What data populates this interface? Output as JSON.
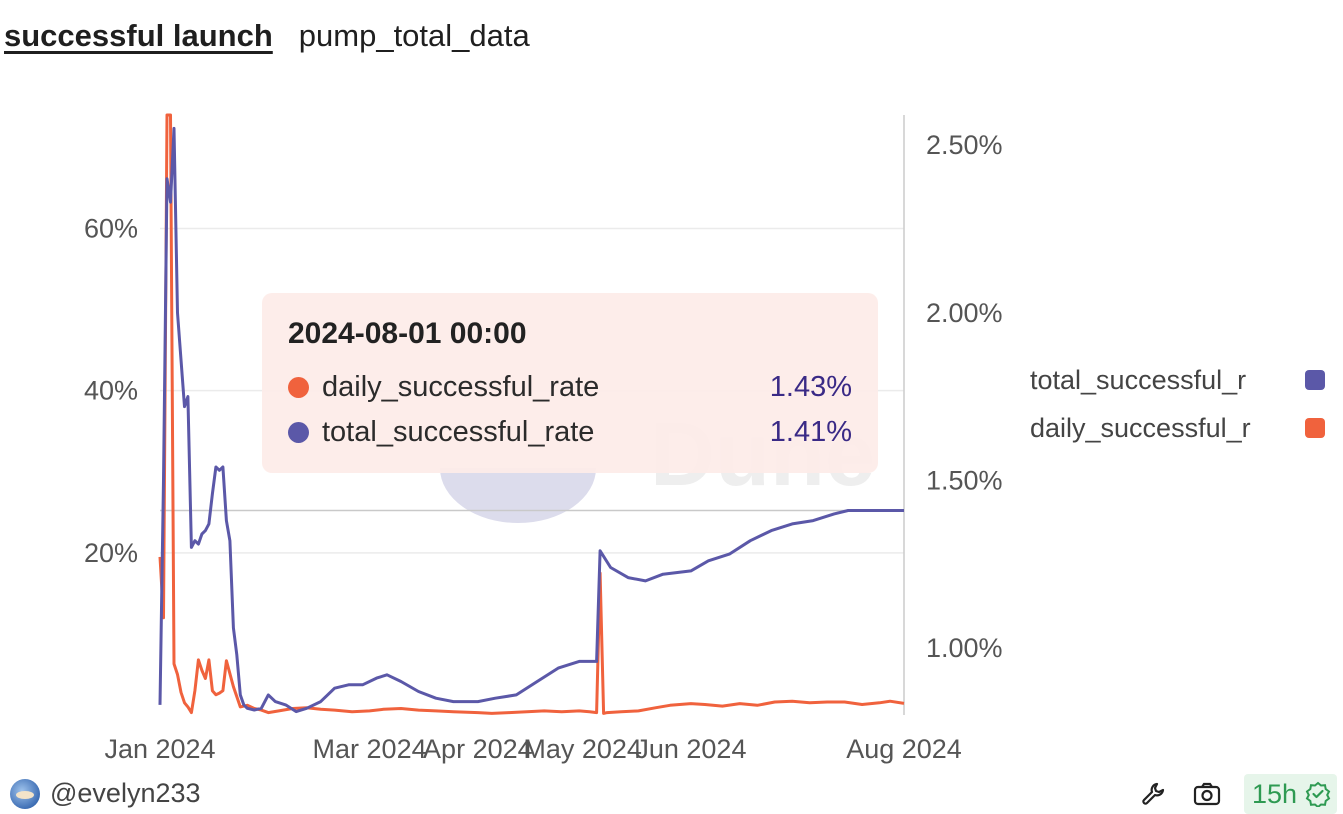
{
  "header": {
    "title": "successful launch",
    "subtitle": "pump_total_data"
  },
  "tooltip": {
    "title": "2024-08-01 00:00",
    "rows": [
      {
        "name": "daily_successful_rate",
        "value": "1.43%",
        "color": "#f0623d"
      },
      {
        "name": "total_successful_rate",
        "value": "1.41%",
        "color": "#5b58a8"
      }
    ]
  },
  "legend": {
    "items": [
      {
        "label": "total_successful_r",
        "color": "#5b58a8"
      },
      {
        "label": "daily_successful_r",
        "color": "#f0623d"
      }
    ]
  },
  "footer": {
    "user": "@evelyn233",
    "refresh_badge": "15h"
  },
  "colors": {
    "total": "#5b58a8",
    "daily": "#f0623d",
    "grid": "#ebebeb",
    "axis": "#cccccc"
  },
  "icons": [
    "wrench-icon",
    "camera-icon",
    "check-circle-icon"
  ],
  "chart_data": {
    "type": "line",
    "x_axis": {
      "type": "date",
      "range": [
        "2024-01-01",
        "2024-08-01"
      ],
      "ticks": [
        {
          "date": "2024-01-01",
          "label": "Jan 2024"
        },
        {
          "date": "2024-03-01",
          "label": "Mar 2024"
        },
        {
          "date": "2024-04-01",
          "label": "Apr 2024"
        },
        {
          "date": "2024-05-01",
          "label": "May 2024"
        },
        {
          "date": "2024-06-01",
          "label": "Jun 2024"
        },
        {
          "date": "2024-08-01",
          "label": "Aug 2024"
        }
      ]
    },
    "y_left": {
      "range": [
        0,
        74
      ],
      "ticks": [
        {
          "value": 20,
          "label": "20%"
        },
        {
          "value": 40,
          "label": "40%"
        },
        {
          "value": 60,
          "label": "60%"
        }
      ]
    },
    "y_right": {
      "range": [
        0.8,
        2.59
      ],
      "ticks": [
        {
          "value": 1.0,
          "label": "1.00%"
        },
        {
          "value": 1.5,
          "label": "1.50%"
        },
        {
          "value": 2.0,
          "label": "2.00%"
        },
        {
          "value": 2.5,
          "label": "2.50%"
        }
      ]
    },
    "grid": true,
    "legend_position": "right",
    "crosshair_date": "2024-08-01",
    "series": [
      {
        "name": "daily_successful_rate",
        "axis": "left",
        "unit": "%",
        "points": [
          [
            "2024-01-01",
            19.5
          ],
          [
            "2024-01-02",
            12
          ],
          [
            "2024-01-03",
            74
          ],
          [
            "2024-01-04",
            74
          ],
          [
            "2024-01-05",
            6.3
          ],
          [
            "2024-01-06",
            5
          ],
          [
            "2024-01-07",
            2.8
          ],
          [
            "2024-01-08",
            1.5
          ],
          [
            "2024-01-09",
            1
          ],
          [
            "2024-01-10",
            0.3
          ],
          [
            "2024-01-11",
            3
          ],
          [
            "2024-01-12",
            6.8
          ],
          [
            "2024-01-13",
            5.5
          ],
          [
            "2024-01-14",
            4.5
          ],
          [
            "2024-01-15",
            6.8
          ],
          [
            "2024-01-16",
            3
          ],
          [
            "2024-01-17",
            2.5
          ],
          [
            "2024-01-18",
            2.7
          ],
          [
            "2024-01-19",
            3
          ],
          [
            "2024-01-20",
            6.7
          ],
          [
            "2024-01-22",
            3.5
          ],
          [
            "2024-01-24",
            1
          ],
          [
            "2024-01-26",
            1.2
          ],
          [
            "2024-01-28",
            0.8
          ],
          [
            "2024-01-30",
            0.6
          ],
          [
            "2024-02-01",
            0.3
          ],
          [
            "2024-02-04",
            0.5
          ],
          [
            "2024-02-08",
            0.8
          ],
          [
            "2024-02-12",
            0.9
          ],
          [
            "2024-02-16",
            0.7
          ],
          [
            "2024-02-20",
            0.6
          ],
          [
            "2024-02-25",
            0.4
          ],
          [
            "2024-03-01",
            0.5
          ],
          [
            "2024-03-05",
            0.7
          ],
          [
            "2024-03-10",
            0.8
          ],
          [
            "2024-03-15",
            0.6
          ],
          [
            "2024-03-20",
            0.5
          ],
          [
            "2024-03-25",
            0.4
          ],
          [
            "2024-04-01",
            0.3
          ],
          [
            "2024-04-05",
            0.2
          ],
          [
            "2024-04-10",
            0.3
          ],
          [
            "2024-04-15",
            0.4
          ],
          [
            "2024-04-20",
            0.5
          ],
          [
            "2024-04-25",
            0.4
          ],
          [
            "2024-04-30",
            0.5
          ],
          [
            "2024-05-03",
            0.4
          ],
          [
            "2024-05-05",
            0.3
          ],
          [
            "2024-05-06",
            17.5
          ],
          [
            "2024-05-07",
            0.2
          ],
          [
            "2024-05-08",
            0.3
          ],
          [
            "2024-05-12",
            0.4
          ],
          [
            "2024-05-17",
            0.5
          ],
          [
            "2024-05-22",
            0.9
          ],
          [
            "2024-05-26",
            1.2
          ],
          [
            "2024-06-01",
            1.4
          ],
          [
            "2024-06-05",
            1.3
          ],
          [
            "2024-06-10",
            1.1
          ],
          [
            "2024-06-15",
            1.4
          ],
          [
            "2024-06-20",
            1.2
          ],
          [
            "2024-06-25",
            1.6
          ],
          [
            "2024-06-30",
            1.7
          ],
          [
            "2024-07-05",
            1.5
          ],
          [
            "2024-07-10",
            1.6
          ],
          [
            "2024-07-15",
            1.6
          ],
          [
            "2024-07-20",
            1.3
          ],
          [
            "2024-07-25",
            1.5
          ],
          [
            "2024-07-28",
            1.7
          ],
          [
            "2024-08-01",
            1.43
          ]
        ]
      },
      {
        "name": "total_successful_rate",
        "axis": "right",
        "unit": "%",
        "points": [
          [
            "2024-01-01",
            0.83
          ],
          [
            "2024-01-02",
            1.5
          ],
          [
            "2024-01-03",
            2.4
          ],
          [
            "2024-01-04",
            2.33
          ],
          [
            "2024-01-05",
            2.55
          ],
          [
            "2024-01-06",
            2.0
          ],
          [
            "2024-01-08",
            1.72
          ],
          [
            "2024-01-09",
            1.75
          ],
          [
            "2024-01-10",
            1.3
          ],
          [
            "2024-01-11",
            1.32
          ],
          [
            "2024-01-12",
            1.31
          ],
          [
            "2024-01-13",
            1.34
          ],
          [
            "2024-01-14",
            1.35
          ],
          [
            "2024-01-15",
            1.37
          ],
          [
            "2024-01-16",
            1.46
          ],
          [
            "2024-01-17",
            1.54
          ],
          [
            "2024-01-18",
            1.53
          ],
          [
            "2024-01-19",
            1.54
          ],
          [
            "2024-01-20",
            1.38
          ],
          [
            "2024-01-21",
            1.32
          ],
          [
            "2024-01-22",
            1.06
          ],
          [
            "2024-01-23",
            0.98
          ],
          [
            "2024-01-24",
            0.86
          ],
          [
            "2024-01-25",
            0.83
          ],
          [
            "2024-01-26",
            0.82
          ],
          [
            "2024-01-28",
            0.815
          ],
          [
            "2024-01-30",
            0.82
          ],
          [
            "2024-02-01",
            0.86
          ],
          [
            "2024-02-03",
            0.84
          ],
          [
            "2024-02-06",
            0.83
          ],
          [
            "2024-02-09",
            0.81
          ],
          [
            "2024-02-12",
            0.82
          ],
          [
            "2024-02-16",
            0.84
          ],
          [
            "2024-02-20",
            0.88
          ],
          [
            "2024-02-24",
            0.89
          ],
          [
            "2024-02-28",
            0.89
          ],
          [
            "2024-03-03",
            0.91
          ],
          [
            "2024-03-06",
            0.92
          ],
          [
            "2024-03-10",
            0.9
          ],
          [
            "2024-03-15",
            0.87
          ],
          [
            "2024-03-20",
            0.85
          ],
          [
            "2024-03-25",
            0.84
          ],
          [
            "2024-04-01",
            0.84
          ],
          [
            "2024-04-06",
            0.85
          ],
          [
            "2024-04-12",
            0.86
          ],
          [
            "2024-04-18",
            0.9
          ],
          [
            "2024-04-24",
            0.94
          ],
          [
            "2024-04-30",
            0.96
          ],
          [
            "2024-05-05",
            0.96
          ],
          [
            "2024-05-06",
            1.29
          ],
          [
            "2024-05-09",
            1.24
          ],
          [
            "2024-05-14",
            1.21
          ],
          [
            "2024-05-19",
            1.2
          ],
          [
            "2024-05-24",
            1.22
          ],
          [
            "2024-06-01",
            1.23
          ],
          [
            "2024-06-06",
            1.26
          ],
          [
            "2024-06-12",
            1.28
          ],
          [
            "2024-06-18",
            1.32
          ],
          [
            "2024-06-24",
            1.35
          ],
          [
            "2024-06-30",
            1.37
          ],
          [
            "2024-07-06",
            1.38
          ],
          [
            "2024-07-12",
            1.4
          ],
          [
            "2024-07-16",
            1.41
          ],
          [
            "2024-07-20",
            1.41
          ],
          [
            "2024-07-24",
            1.41
          ],
          [
            "2024-07-28",
            1.41
          ],
          [
            "2024-08-01",
            1.41
          ]
        ]
      }
    ]
  }
}
